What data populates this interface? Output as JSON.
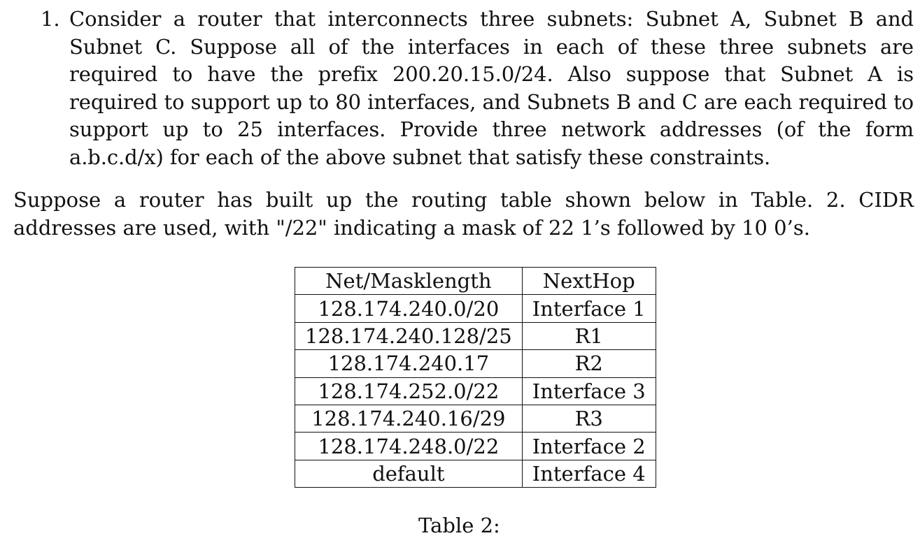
{
  "question": {
    "number": "1.",
    "text": "Consider a router that interconnects three subnets: Subnet A, Subnet B and Subnet C. Suppose all of the interfaces in each of these three subnets are required to have the prefix 200.20.15.0/24. Also suppose that Subnet A is required to support up to 80 interfaces, and Subnets B and C are each required to support up to 25 interfaces. Provide three network addresses (of the form a.b.c.d/x) for each of the above subnet that satisfy these constraints."
  },
  "paragraph": "Suppose a router has built up the routing table shown below in Table. 2. CIDR addresses are used, with \"/22\" indicating a mask of 22 1’s followed by 10 0’s.",
  "table": {
    "headers": [
      "Net/Masklength",
      "NextHop"
    ],
    "rows": [
      [
        "128.174.240.0/20",
        "Interface 1"
      ],
      [
        "128.174.240.128/25",
        "R1"
      ],
      [
        "128.174.240.17",
        "R2"
      ],
      [
        "128.174.252.0/22",
        "Interface 3"
      ],
      [
        "128.174.240.16/29",
        "R3"
      ],
      [
        "128.174.248.0/22",
        "Interface 2"
      ],
      [
        "default",
        "Interface 4"
      ]
    ],
    "caption": "Table 2:"
  }
}
